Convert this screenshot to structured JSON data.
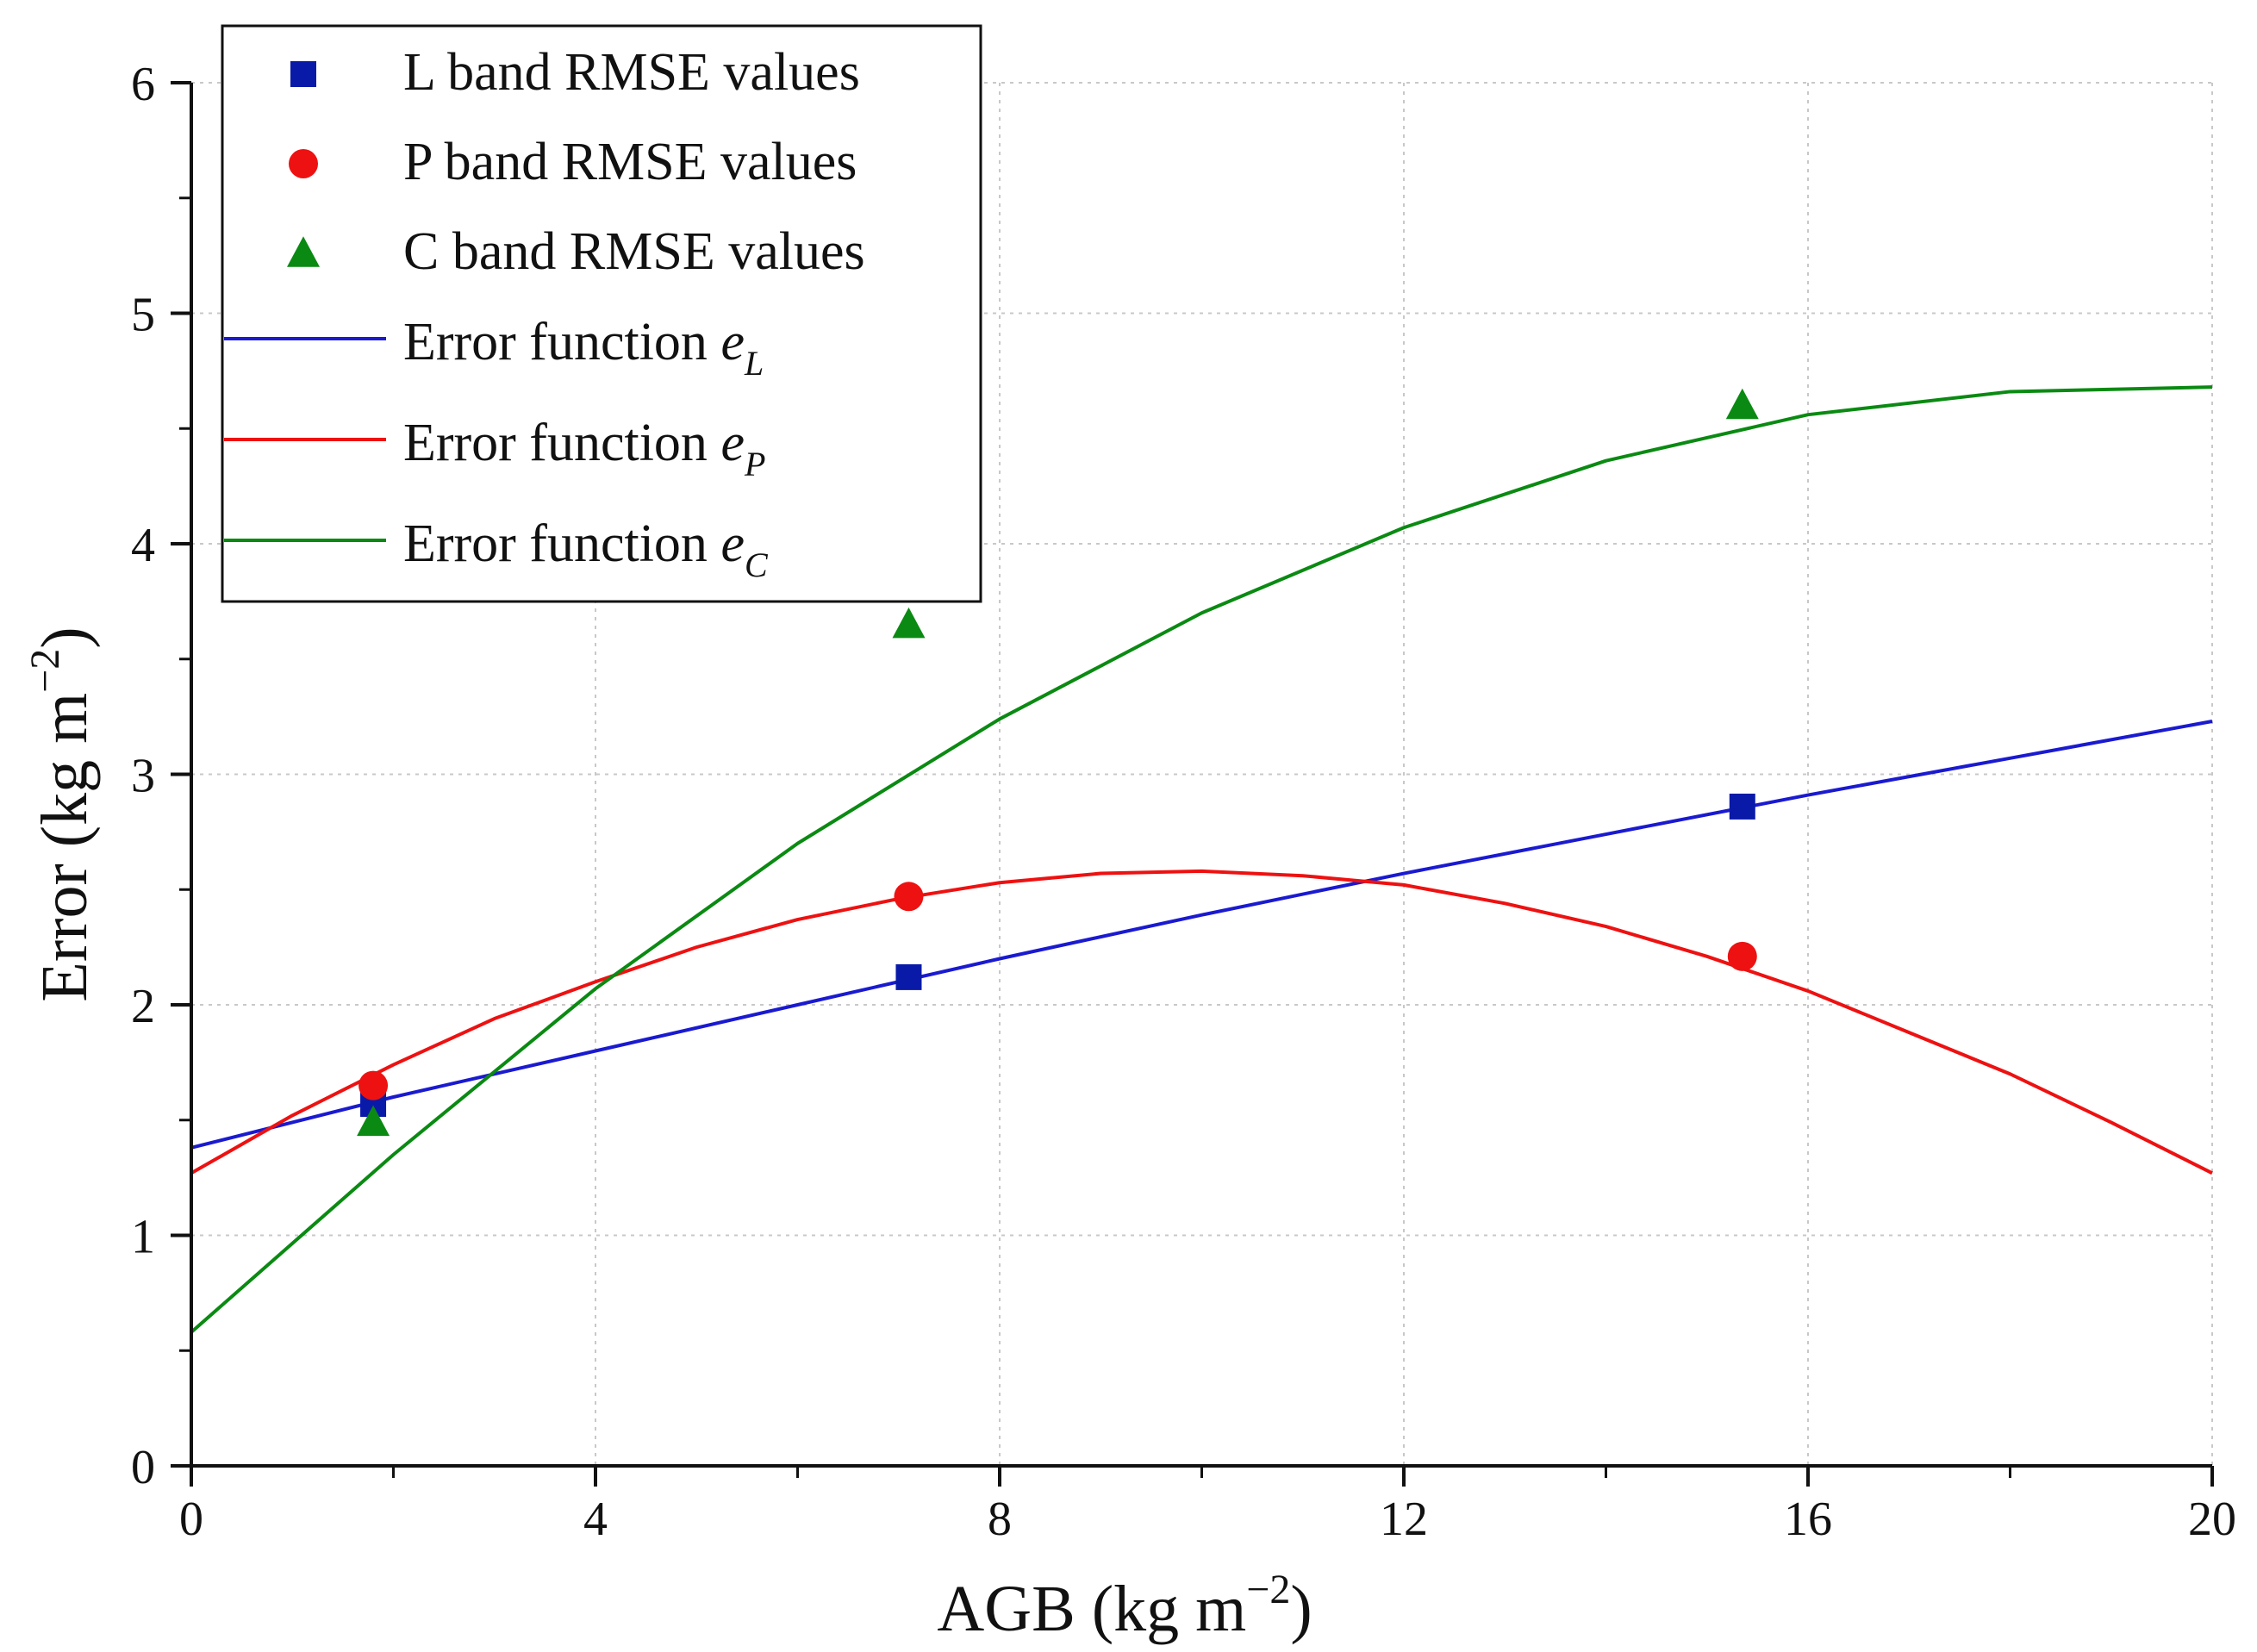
{
  "chart_data": {
    "type": "scatter",
    "title": "",
    "xlabel_main": "AGB (kg m",
    "xlabel_sup": "−2",
    "xlabel_end": ")",
    "ylabel_main": "Error (kg m",
    "ylabel_sup": "−2",
    "ylabel_end": ")",
    "xlim": [
      0,
      20
    ],
    "ylim": [
      0,
      6
    ],
    "xticks": [
      "0",
      "4",
      "8",
      "12",
      "16",
      "20"
    ],
    "yticks": [
      "0",
      "1",
      "2",
      "3",
      "4",
      "5",
      "6"
    ],
    "grid": true,
    "legend_position": "top-left",
    "series": [
      {
        "name": "L band RMSE values",
        "kind": "points",
        "marker": "square",
        "color": "#0a1aa8",
        "x": [
          1.8,
          7.1,
          15.35
        ],
        "y": [
          1.57,
          2.12,
          2.86
        ]
      },
      {
        "name": "P band RMSE values",
        "kind": "points",
        "marker": "circle",
        "color": "#ee1111",
        "x": [
          1.8,
          7.1,
          15.35
        ],
        "y": [
          1.65,
          2.47,
          2.21
        ]
      },
      {
        "name": "C band RMSE values",
        "kind": "points",
        "marker": "triangle",
        "color": "#0a8a12",
        "x": [
          1.8,
          7.1,
          15.35
        ],
        "y": [
          1.49,
          3.65,
          4.6
        ]
      },
      {
        "name": "Error function",
        "subscript": "L",
        "kind": "line",
        "color": "#1a1ad0",
        "x": [
          0,
          2,
          4,
          6,
          8,
          10,
          12,
          14,
          16,
          18,
          20
        ],
        "y": [
          1.38,
          1.6,
          1.8,
          2.0,
          2.2,
          2.39,
          2.57,
          2.74,
          2.91,
          3.07,
          3.23
        ]
      },
      {
        "name": "Error function",
        "subscript": "P",
        "kind": "line",
        "color": "#ee1111",
        "x": [
          0,
          1,
          2,
          3,
          4,
          5,
          6,
          7,
          8,
          9,
          10,
          11,
          12,
          13,
          14,
          15,
          16,
          17,
          18,
          19,
          20
        ],
        "y": [
          1.27,
          1.52,
          1.74,
          1.94,
          2.1,
          2.25,
          2.37,
          2.46,
          2.53,
          2.57,
          2.58,
          2.56,
          2.52,
          2.44,
          2.34,
          2.21,
          2.06,
          1.88,
          1.7,
          1.49,
          1.27
        ]
      },
      {
        "name": "Error function",
        "subscript": "C",
        "kind": "line",
        "color": "#0a8a12",
        "x": [
          0,
          2,
          4,
          6,
          8,
          10,
          12,
          14,
          16,
          18,
          20
        ],
        "y": [
          0.58,
          1.35,
          2.07,
          2.7,
          3.24,
          3.7,
          4.07,
          4.36,
          4.56,
          4.66,
          4.68
        ]
      }
    ]
  }
}
